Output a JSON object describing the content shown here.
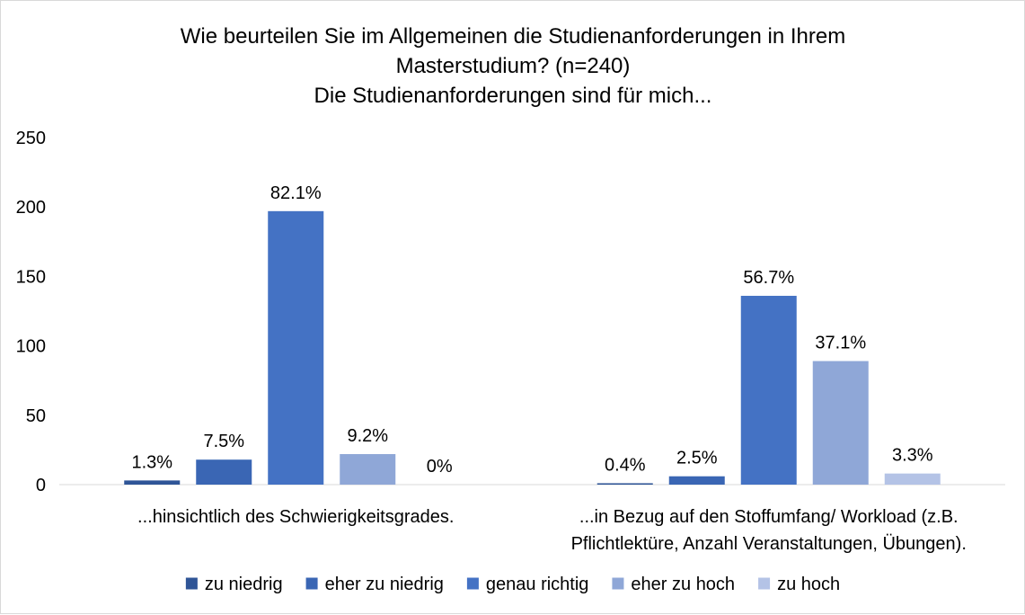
{
  "chart_data": {
    "type": "bar",
    "title_lines": [
      "Wie beurteilen Sie im Allgemeinen die Studienanforderungen  in Ihrem",
      "Masterstudium? (n=240)",
      "Die Studienanforderungen  sind für mich..."
    ],
    "categories": [
      [
        "...hinsichtlich des Schwierigkeitsgrades."
      ],
      [
        "...in Bezug auf den Stoffumfang/ Workload (z.B.",
        "Pflichtlektüre, Anzahl Veranstaltungen, Übungen)."
      ]
    ],
    "ylim": [
      0,
      250
    ],
    "yticks": [
      0,
      50,
      100,
      150,
      200,
      250
    ],
    "grid": false,
    "legend_position": "bottom",
    "series": [
      {
        "name": "zu niedrig",
        "color": "#2f5597",
        "values": [
          3,
          1
        ],
        "labels": [
          "1.3%",
          "0.4%"
        ]
      },
      {
        "name": "eher zu niedrig",
        "color": "#3a66b4",
        "values": [
          18,
          6
        ],
        "labels": [
          "7.5%",
          "2.5%"
        ]
      },
      {
        "name": "genau richtig",
        "color": "#4472c4",
        "values": [
          197,
          136
        ],
        "labels": [
          "82.1%",
          "56.7%"
        ]
      },
      {
        "name": "eher zu hoch",
        "color": "#8fa7d7",
        "values": [
          22,
          89
        ],
        "labels": [
          "9.2%",
          "37.1%"
        ]
      },
      {
        "name": "zu hoch",
        "color": "#b4c3e6",
        "values": [
          0,
          8
        ],
        "labels": [
          "0%",
          "3.3%"
        ]
      }
    ]
  }
}
